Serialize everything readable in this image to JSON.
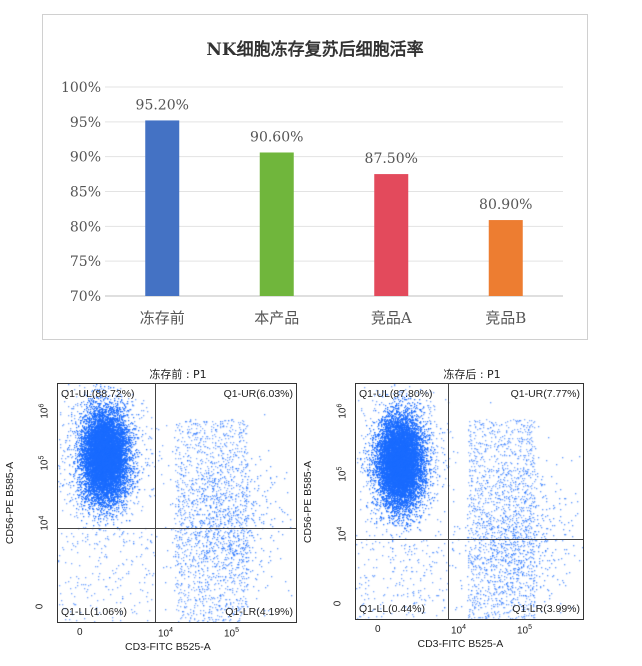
{
  "chart_data": [
    {
      "type": "bar",
      "title": "NK细胞冻存复苏后细胞活率",
      "categories": [
        "冻存前",
        "本产品",
        "竞品A",
        "竞品B"
      ],
      "values": [
        95.2,
        90.6,
        87.5,
        80.9
      ],
      "data_labels": [
        "95.20%",
        "90.60%",
        "87.50%",
        "80.90%"
      ],
      "colors": [
        "#4472c4",
        "#70b63c",
        "#e34a5c",
        "#ed7d31"
      ],
      "ylim": [
        70,
        100
      ],
      "yticks": [
        "70%",
        "75%",
        "80%",
        "85%",
        "90%",
        "95%",
        "100%"
      ],
      "grid": true,
      "xlabel": "",
      "ylabel": ""
    },
    {
      "type": "scatter",
      "title": "冻存前 : P1",
      "xlabel": "CD3-FITC B525-A",
      "ylabel": "CD56-PE B585-A",
      "xticks": [
        "0",
        "10^4",
        "10^5"
      ],
      "yticks": [
        "0",
        "10^4",
        "10^5",
        "10^6"
      ],
      "point_color": "#1a6cff",
      "quadrants": {
        "UL": "Q1-UL(88.72%)",
        "UR": "Q1-UR(6.03%)",
        "LL": "Q1-LL(1.06%)",
        "LR": "Q1-LR(4.19%)"
      },
      "quadrant_percent": {
        "UL": 88.72,
        "UR": 6.03,
        "LL": 1.06,
        "LR": 4.19
      }
    },
    {
      "type": "scatter",
      "title": "冻存后 : P1",
      "xlabel": "CD3-FITC B525-A",
      "ylabel": "CD56-PE B585-A",
      "xticks": [
        "0",
        "10^4",
        "10^5"
      ],
      "yticks": [
        "0",
        "10^4",
        "10^5",
        "10^6"
      ],
      "point_color": "#1a6cff",
      "quadrants": {
        "UL": "Q1-UL(87.80%)",
        "UR": "Q1-UR(7.77%)",
        "LL": "Q1-LL(0.44%)",
        "LR": "Q1-LR(3.99%)"
      },
      "quadrant_percent": {
        "UL": 87.8,
        "UR": 7.77,
        "LL": 0.44,
        "LR": 3.99
      }
    }
  ]
}
